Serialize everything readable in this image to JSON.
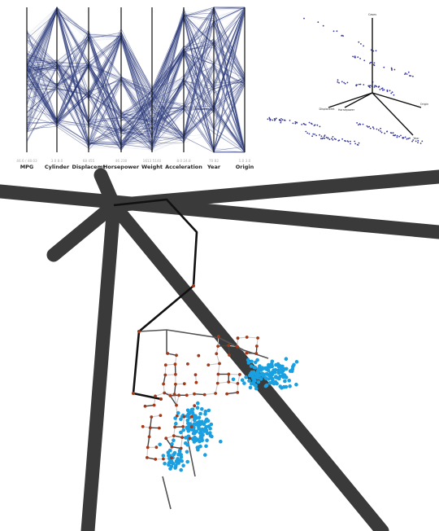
{
  "parallel_coordinates": {
    "axes": [
      {
        "name": "MPG",
        "range": "46.6 / 48.03"
      },
      {
        "name": "Cylinder",
        "range": "3.0 8.0"
      },
      {
        "name": "Displacemt",
        "range": "68 455"
      },
      {
        "name": "Horsepower",
        "range": "46 230"
      },
      {
        "name": "Weight",
        "range": "1613 5140"
      },
      {
        "name": "Acceleration",
        "range": "8.0 24.8"
      },
      {
        "name": "Year",
        "range": "70 82"
      },
      {
        "name": "Origin",
        "range": "1.0 3.0"
      }
    ],
    "line_color": "#1c2a6e"
  },
  "scatter_3d": {
    "axis_labels": [
      "Cases",
      "Displacemt",
      "Horsepower",
      "Year",
      "Origin"
    ],
    "point_color": "#3a3aa0"
  },
  "star_plot": {
    "spoke_color": "#3a3a3a",
    "path_color": "#111111",
    "node_color": "#a0391a",
    "point_color": "#1aa0e0",
    "edge_color": "#c8c8c8"
  }
}
